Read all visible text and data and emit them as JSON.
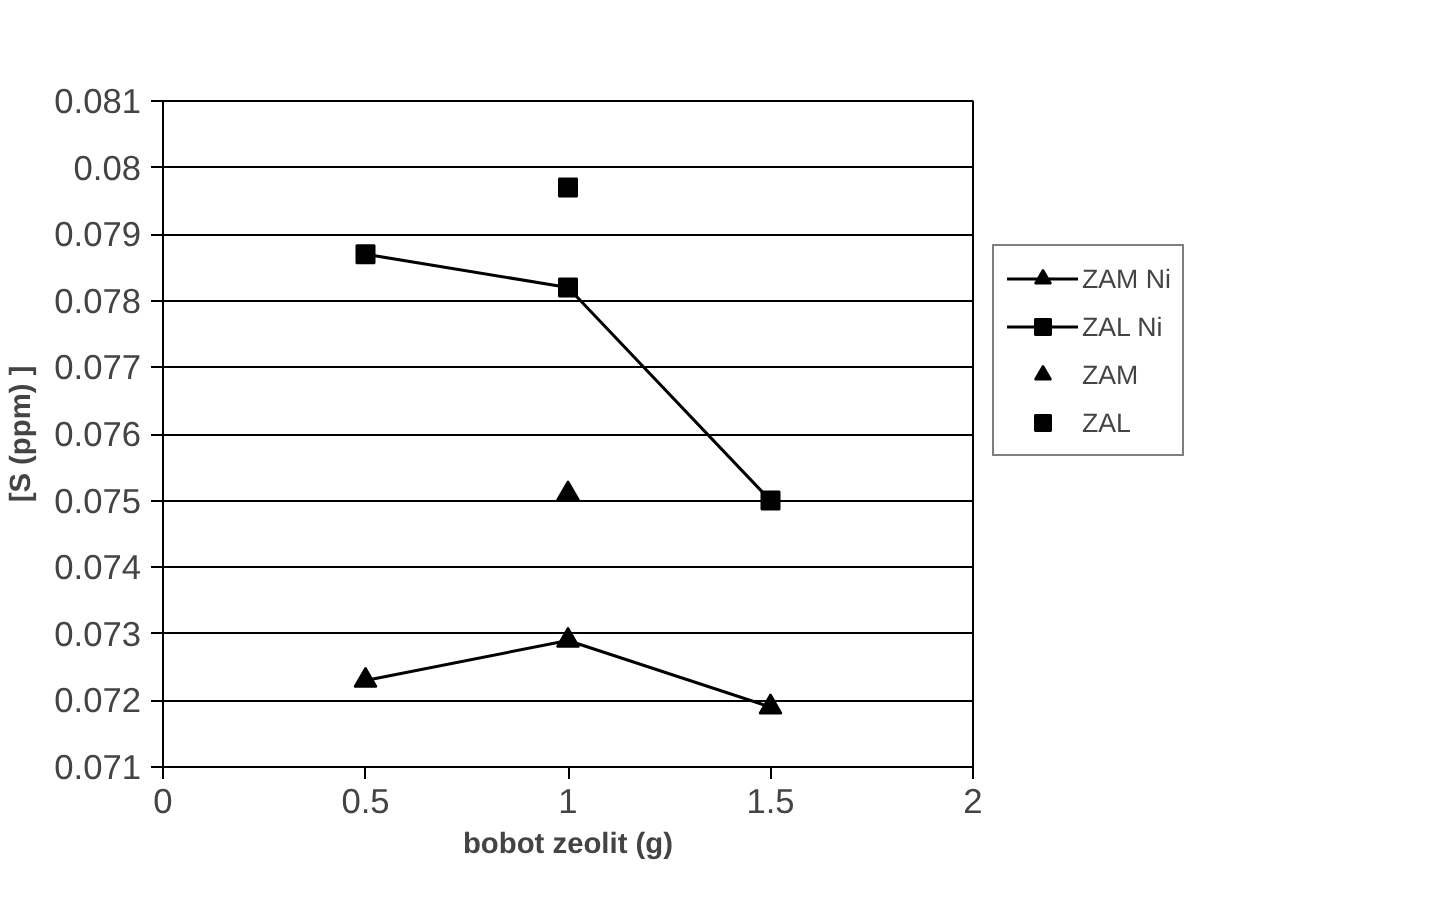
{
  "chart_data": {
    "type": "line",
    "xlabel": "bobot zeolit (g)",
    "ylabel": "[S (ppm) ]",
    "x": [
      0.5,
      1,
      1.5
    ],
    "series": [
      {
        "name": "ZAM Ni",
        "type": "line",
        "marker": "triangle",
        "color": "#000000",
        "values": [
          0.0723,
          0.0729,
          0.0719
        ]
      },
      {
        "name": "ZAL Ni",
        "type": "line",
        "marker": "square",
        "color": "#000000",
        "values": [
          0.0787,
          0.0782,
          0.075
        ]
      },
      {
        "name": "ZAM",
        "type": "scatter",
        "marker": "triangle",
        "color": "#000000",
        "x": [
          1
        ],
        "values": [
          0.0751
        ]
      },
      {
        "name": "ZAL",
        "type": "scatter",
        "marker": "square",
        "color": "#000000",
        "x": [
          1
        ],
        "values": [
          0.0797
        ]
      }
    ],
    "xlim": [
      0,
      2
    ],
    "xticks": [
      0,
      {
        "value": 0.5,
        "label": "0.5"
      },
      1,
      {
        "value": 1.5,
        "label": "1.5"
      },
      2
    ],
    "ylim": [
      0.071,
      0.081
    ],
    "yticks": [
      0.071,
      0.072,
      0.073,
      0.074,
      0.075,
      0.076,
      0.077,
      0.078,
      0.079,
      {
        "value": 0.08,
        "label": "0.08"
      },
      0.081
    ],
    "grid": "y",
    "legend": "right"
  }
}
